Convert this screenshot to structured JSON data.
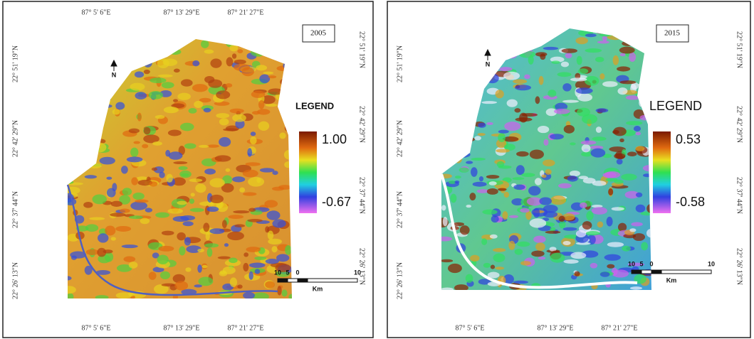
{
  "panels": [
    {
      "year": "2005",
      "legend_title": "LEGEND",
      "legend_max": "1.00",
      "legend_min": "-0.67",
      "north": "N",
      "top_labels": [
        "87° 5' 6\"E",
        "87° 13' 29\"E",
        "87° 21' 27\"E"
      ],
      "bottom_labels": [
        "87° 5' 6\"E",
        "87° 13' 29\"E",
        "87° 21' 27\"E"
      ],
      "left_labels": [
        "22° 51' 19\"N",
        "22° 42' 29\"N",
        "22° 37' 44\"N",
        "22° 26' 13\"N"
      ],
      "right_labels": [
        "22° 51' 19\"N",
        "22° 42' 29\"N",
        "22° 37' 44\"N",
        "22° 26' 13\"N"
      ],
      "scale_labels": [
        "10",
        "5",
        "0",
        "10"
      ],
      "scale_unit": "Km"
    },
    {
      "year": "2015",
      "legend_title": "LEGEND",
      "legend_max": "0.53",
      "legend_min": "-0.58",
      "north": "N",
      "top_labels": [],
      "bottom_labels": [
        "87° 5' 6\"E",
        "87° 13' 29\"E",
        "87° 21' 27\"E"
      ],
      "left_labels": [
        "22° 51' 19\"N",
        "22° 42' 29\"N",
        "22° 37' 44\"N",
        "22° 26' 13\"N"
      ],
      "right_labels": [
        "22° 51' 19\"N",
        "22° 42' 29\"N",
        "22° 37' 44\"N",
        "22° 26' 13\"N"
      ],
      "scale_labels": [
        "10",
        "5",
        "0",
        "10"
      ],
      "scale_unit": "Km"
    }
  ]
}
